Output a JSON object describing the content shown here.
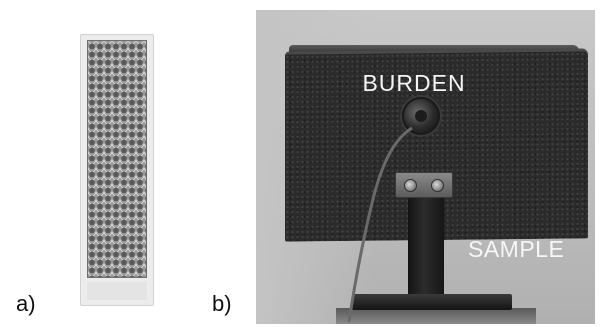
{
  "panels": {
    "a": {
      "label": "a)"
    },
    "b": {
      "label": "b)",
      "annotations": {
        "burden": "BURDEN",
        "sample": "SAMPLE"
      }
    }
  },
  "colors": {
    "board": "#2b2b2b",
    "wall": "#c8c8c8",
    "annotation_text": "#f4f4f4"
  }
}
